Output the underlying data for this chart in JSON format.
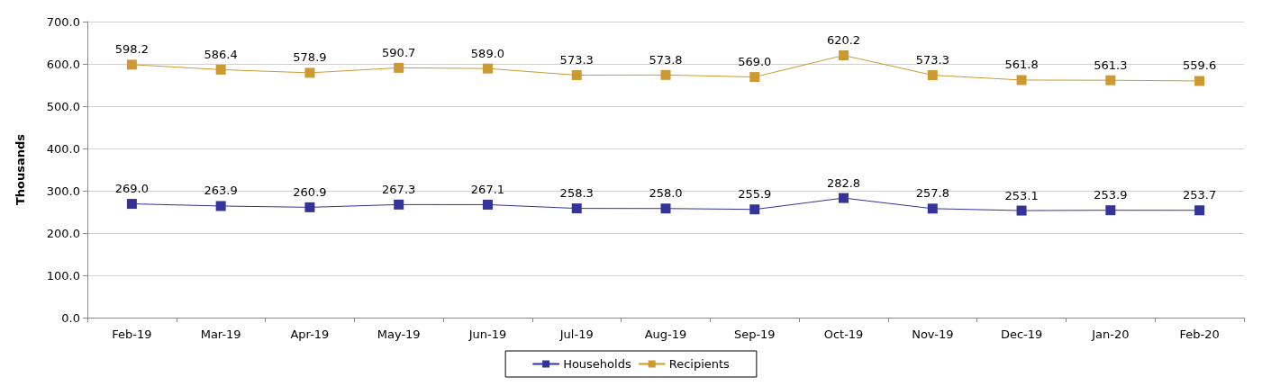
{
  "chart_data": {
    "type": "line",
    "ylabel": "Thousands",
    "categories": [
      "Feb-19",
      "Mar-19",
      "Apr-19",
      "May-19",
      "Jun-19",
      "Jul-19",
      "Aug-19",
      "Sep-19",
      "Oct-19",
      "Nov-19",
      "Dec-19",
      "Jan-20",
      "Feb-20"
    ],
    "series": [
      {
        "name": "Households",
        "color": "#333399",
        "values": [
          269.0,
          263.9,
          260.9,
          267.3,
          267.1,
          258.3,
          258.0,
          255.9,
          282.8,
          257.8,
          253.1,
          253.9,
          253.7
        ],
        "value_labels": [
          "269.0",
          "263.9",
          "260.9",
          "267.3",
          "267.1",
          "258.3",
          "258.0",
          "255.9",
          "282.8",
          "257.8",
          "253.1",
          "253.9",
          "253.7"
        ]
      },
      {
        "name": "Recipients",
        "color": "#cc9933",
        "values": [
          598.2,
          586.4,
          578.9,
          590.7,
          589.0,
          573.3,
          573.8,
          569.0,
          620.2,
          573.3,
          561.8,
          561.3,
          559.6
        ],
        "value_labels": [
          "598.2",
          "586.4",
          "578.9",
          "590.7",
          "589.0",
          "573.3",
          "573.8",
          "569.0",
          "620.2",
          "573.3",
          "561.8",
          "561.3",
          "559.6"
        ]
      }
    ],
    "ylim": [
      0,
      700
    ],
    "yticks": [
      {
        "value": 0,
        "label": "0.0"
      },
      {
        "value": 100,
        "label": "100.0"
      },
      {
        "value": 200,
        "label": "200.0"
      },
      {
        "value": 300,
        "label": "300.0"
      },
      {
        "value": 400,
        "label": "400.0"
      },
      {
        "value": 500,
        "label": "500.0"
      },
      {
        "value": 600,
        "label": "600.0"
      },
      {
        "value": 700,
        "label": "700.0"
      }
    ],
    "grid": "y",
    "legend": "bottom",
    "marker": "square",
    "line_style": "solid"
  }
}
